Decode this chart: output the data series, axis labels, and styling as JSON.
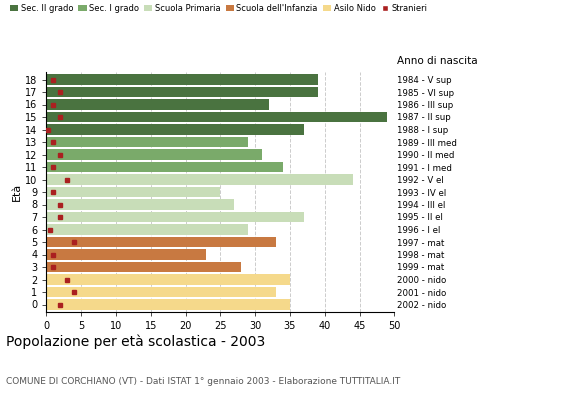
{
  "ages": [
    18,
    17,
    16,
    15,
    14,
    13,
    12,
    11,
    10,
    9,
    8,
    7,
    6,
    5,
    4,
    3,
    2,
    1,
    0
  ],
  "labels_right": [
    "1984 - V sup",
    "1985 - VI sup",
    "1986 - III sup",
    "1987 - II sup",
    "1988 - I sup",
    "1989 - III med",
    "1990 - II med",
    "1991 - I med",
    "1992 - V el",
    "1993 - IV el",
    "1994 - III el",
    "1995 - II el",
    "1996 - I el",
    "1997 - mat",
    "1998 - mat",
    "1999 - mat",
    "2000 - nido",
    "2001 - nido",
    "2002 - nido"
  ],
  "bar_values": [
    39,
    39,
    32,
    49,
    37,
    29,
    31,
    34,
    44,
    25,
    27,
    37,
    29,
    33,
    23,
    28,
    35,
    33,
    35
  ],
  "bar_colors": [
    "#4a7340",
    "#4a7340",
    "#4a7340",
    "#4a7340",
    "#4a7340",
    "#7aaa6a",
    "#7aaa6a",
    "#7aaa6a",
    "#c8ddb8",
    "#c8ddb8",
    "#c8ddb8",
    "#c8ddb8",
    "#c8ddb8",
    "#c87941",
    "#c87941",
    "#c87941",
    "#f5d98b",
    "#f5d98b",
    "#f5d98b"
  ],
  "stranieri_values": [
    1,
    2,
    1,
    2,
    0.3,
    1,
    2,
    1,
    3,
    1,
    2,
    2,
    0.5,
    4,
    1,
    1,
    3,
    4,
    2
  ],
  "legend_labels": [
    "Sec. II grado",
    "Sec. I grado",
    "Scuola Primaria",
    "Scuola dell'Infanzia",
    "Asilo Nido",
    "Stranieri"
  ],
  "legend_colors": [
    "#4a7340",
    "#7aaa6a",
    "#c8ddb8",
    "#c87941",
    "#f5d98b",
    "#aa2020"
  ],
  "ylabel": "Età",
  "xlim": [
    0,
    50
  ],
  "xticks": [
    0,
    5,
    10,
    15,
    20,
    25,
    30,
    35,
    40,
    45,
    50
  ],
  "title": "Popolazione per età scolastica - 2003",
  "subtitle": "COMUNE DI CORCHIANO (VT) - Dati ISTAT 1° gennaio 2003 - Elaborazione TUTTITALIA.IT",
  "anno_nascita_label": "Anno di nascita",
  "bg_color": "#ffffff",
  "grid_color": "#cccccc",
  "bar_height": 0.82
}
